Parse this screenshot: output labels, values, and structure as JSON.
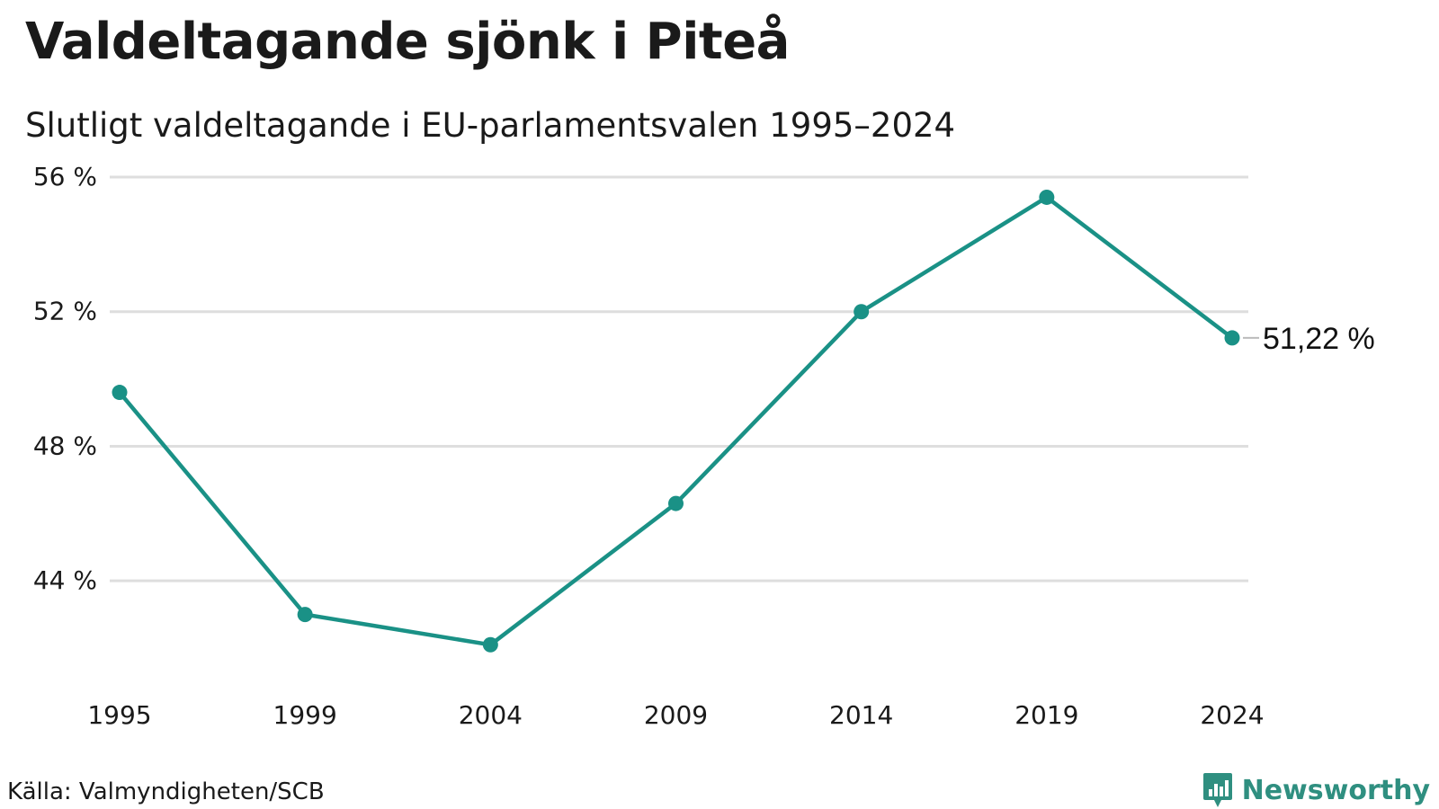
{
  "header": {
    "title": "Valdeltagande sjönk i Piteå",
    "subtitle": "Slutligt valdeltagande i EU-parlamentsvalen 1995–2024"
  },
  "footer": {
    "source": "Källa: Valmyndigheten/SCB",
    "brand": "Newsworthy"
  },
  "colors": {
    "line": "#1a9186",
    "grid": "#dedede",
    "text": "#1a1a1a",
    "brand": "#2f8f80"
  },
  "chart_data": {
    "type": "line",
    "title": "Valdeltagande sjönk i Piteå",
    "subtitle": "Slutligt valdeltagande i EU-parlamentsvalen 1995–2024",
    "xlabel": "",
    "ylabel": "",
    "categories": [
      "1995",
      "1999",
      "2004",
      "2009",
      "2014",
      "2019",
      "2024"
    ],
    "values": [
      49.6,
      43.0,
      42.1,
      46.3,
      52.0,
      55.4,
      51.22
    ],
    "ylim": [
      41.6,
      56.0
    ],
    "yticks": [
      44,
      48,
      52,
      56
    ],
    "ytick_labels": [
      "44 %",
      "48 %",
      "52 %",
      "56 %"
    ],
    "grid": true,
    "end_label": "51,22 %"
  }
}
